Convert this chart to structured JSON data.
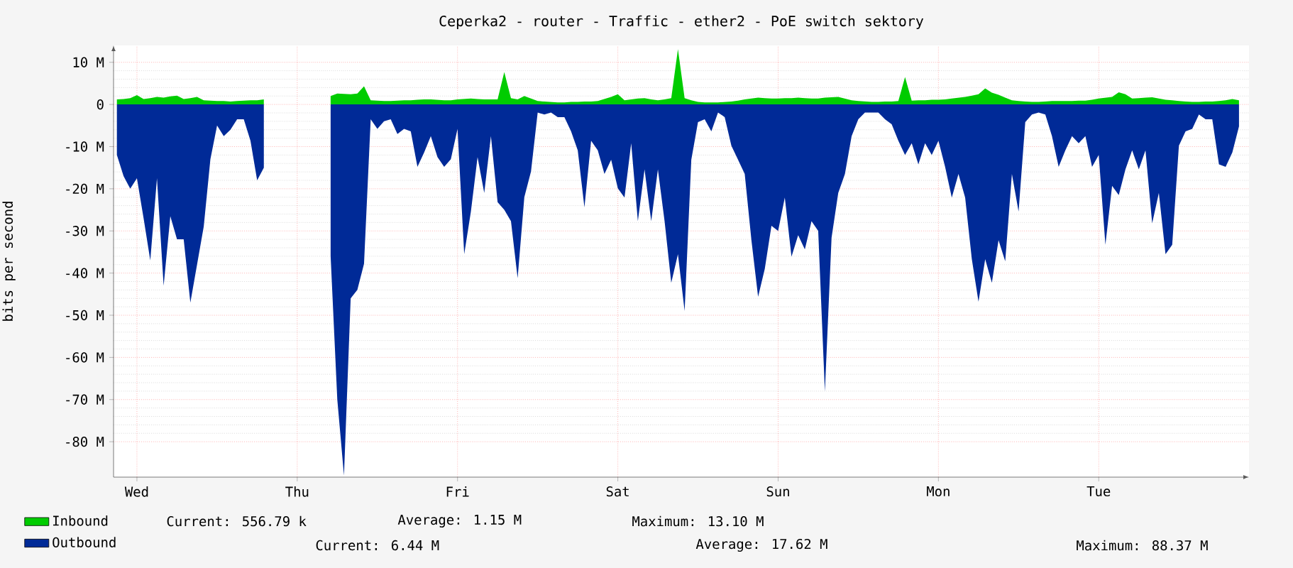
{
  "chart_data": {
    "type": "area",
    "title": "Ceperka2 - router - Traffic - ether2 - PoE switch sektory",
    "ylabel": "bits per second",
    "categories": [
      null,
      null,
      null,
      "Wed",
      null,
      null,
      null,
      null,
      null,
      null,
      null,
      null,
      null,
      null,
      null,
      null,
      null,
      null,
      null,
      null,
      null,
      null,
      null,
      null,
      null,
      null,
      null,
      "Thu",
      null,
      null,
      null,
      null,
      null,
      null,
      null,
      null,
      null,
      null,
      null,
      null,
      null,
      null,
      null,
      null,
      null,
      null,
      null,
      null,
      null,
      null,
      null,
      "Fri",
      null,
      null,
      null,
      null,
      null,
      null,
      null,
      null,
      null,
      null,
      null,
      null,
      null,
      null,
      null,
      null,
      null,
      null,
      null,
      null,
      null,
      null,
      null,
      "Sat",
      null,
      null,
      null,
      null,
      null,
      null,
      null,
      null,
      null,
      null,
      null,
      null,
      null,
      null,
      null,
      null,
      null,
      null,
      null,
      null,
      null,
      null,
      null,
      "Sun",
      null,
      null,
      null,
      null,
      null,
      null,
      null,
      null,
      null,
      null,
      null,
      null,
      null,
      null,
      null,
      null,
      null,
      null,
      null,
      null,
      null,
      null,
      null,
      "Mon",
      null,
      null,
      null,
      null,
      null,
      null,
      null,
      null,
      null,
      null,
      null,
      null,
      null,
      null,
      null,
      null,
      null,
      null,
      null,
      null,
      null,
      null,
      null,
      "Tue",
      null,
      null,
      null,
      null,
      null,
      null,
      null,
      null,
      null,
      null,
      null,
      null,
      null,
      null,
      null,
      null,
      null,
      null,
      null,
      null,
      null
    ],
    "ylim": [
      -88.4,
      14
    ],
    "yticks": [
      {
        "value": 10,
        "label": "10 M"
      },
      0,
      {
        "value": -10,
        "label": "-10 M"
      },
      {
        "value": -20,
        "label": "-20 M"
      },
      {
        "value": -30,
        "label": "-30 M"
      },
      {
        "value": -40,
        "label": "-40 M"
      },
      {
        "value": -50,
        "label": "-50 M"
      },
      {
        "value": -60,
        "label": "-60 M"
      },
      {
        "value": -70,
        "label": "-70 M"
      },
      {
        "value": -80,
        "label": "-80 M"
      }
    ],
    "grid": true,
    "legend": "bottom",
    "series": [
      {
        "name": "Inbound",
        "color": "#00cc00",
        "values": [
          1.2,
          1.3,
          1.5,
          2.2,
          1.3,
          1.5,
          1.8,
          1.6,
          1.9,
          2.1,
          1.3,
          1.5,
          1.8,
          1.0,
          0.9,
          0.8,
          0.8,
          0.7,
          0.8,
          0.9,
          1.0,
          1.0,
          1.2,
          null,
          null,
          null,
          null,
          null,
          null,
          null,
          null,
          null,
          2.0,
          2.6,
          2.5,
          2.4,
          2.6,
          4.3,
          1.0,
          0.9,
          0.8,
          0.8,
          0.9,
          1.0,
          1.0,
          1.1,
          1.2,
          1.2,
          1.1,
          1.0,
          1.0,
          1.2,
          1.3,
          1.4,
          1.3,
          1.2,
          1.2,
          1.2,
          7.7,
          1.5,
          1.2,
          2.0,
          1.4,
          0.8,
          0.7,
          0.6,
          0.5,
          0.5,
          0.6,
          0.6,
          0.7,
          0.7,
          0.8,
          1.3,
          1.8,
          2.4,
          1.0,
          1.2,
          1.4,
          1.5,
          1.2,
          1.0,
          1.2,
          1.5,
          13.1,
          1.5,
          1.0,
          0.6,
          0.5,
          0.5,
          0.5,
          0.6,
          0.7,
          0.9,
          1.2,
          1.4,
          1.6,
          1.5,
          1.4,
          1.4,
          1.5,
          1.5,
          1.6,
          1.5,
          1.4,
          1.4,
          1.6,
          1.7,
          1.8,
          1.4,
          1.0,
          0.8,
          0.7,
          0.6,
          0.6,
          0.7,
          0.7,
          0.8,
          6.5,
          0.9,
          1.0,
          1.0,
          1.1,
          1.1,
          1.2,
          1.4,
          1.6,
          1.8,
          2.1,
          2.4,
          3.8,
          2.8,
          2.3,
          1.6,
          1.0,
          0.8,
          0.7,
          0.6,
          0.6,
          0.7,
          0.8,
          0.8,
          0.8,
          0.8,
          0.9,
          0.9,
          1.1,
          1.4,
          1.6,
          1.8,
          2.9,
          2.4,
          1.4,
          1.5,
          1.6,
          1.7,
          1.4,
          1.1,
          1.0,
          0.8,
          0.7,
          0.6,
          0.6,
          0.7,
          0.7,
          0.8,
          1.0,
          1.3,
          1.0
        ]
      },
      {
        "name": "Outbound",
        "color": "#002a97",
        "values": [
          -12,
          -17,
          -20,
          -17.5,
          -27,
          -37,
          -17.5,
          -43,
          -26.5,
          -32,
          -32,
          -47,
          -38,
          -29,
          -13,
          -5,
          -7.5,
          -6,
          -3.5,
          -3.5,
          -8.6,
          -18,
          -15,
          null,
          null,
          null,
          null,
          null,
          null,
          null,
          null,
          null,
          -36,
          -70,
          -88,
          -46,
          -44,
          -37.8,
          -3.5,
          -5.8,
          -4,
          -3.5,
          -7,
          -5.8,
          -6.4,
          -14.8,
          -11.4,
          -7.5,
          -12.5,
          -14.8,
          -13,
          -5.8,
          -35.5,
          -25.4,
          -12.5,
          -21,
          -7.5,
          -23.2,
          -25,
          -27.7,
          -41.2,
          -22,
          -15.9,
          -1.9,
          -2.4,
          -1.9,
          -3,
          -3,
          -6.4,
          -10.9,
          -24.4,
          -8.6,
          -10.9,
          -16.5,
          -13.1,
          -19.9,
          -22.1,
          -9.2,
          -27.7,
          -15.4,
          -27.7,
          -15.4,
          -27.7,
          -42.3,
          -35.5,
          -49,
          -13.1,
          -4.2,
          -3.5,
          -6.4,
          -1.9,
          -3,
          -9.8,
          -13.1,
          -16.5,
          -32.2,
          -45.6,
          -39,
          -28.8,
          -30,
          -22.1,
          -36.1,
          -31,
          -34.4,
          -27.7,
          -30,
          -68.1,
          -31.6,
          -21,
          -16.5,
          -7.5,
          -3.5,
          -1.9,
          -1.9,
          -1.9,
          -3.5,
          -4.7,
          -8.6,
          -12,
          -9.2,
          -14.2,
          -9.2,
          -12,
          -8.6,
          -14.8,
          -22.1,
          -16.5,
          -22.1,
          -36.7,
          -46.8,
          -36.7,
          -42.3,
          -32.2,
          -37.2,
          -16.5,
          -25.4,
          -4.2,
          -2.4,
          -1.9,
          -2.4,
          -7.5,
          -14.8,
          -10.9,
          -7.5,
          -9.2,
          -7.5,
          -14.8,
          -12,
          -33.3,
          -19.3,
          -21.5,
          -15.4,
          -10.9,
          -15.4,
          -10.9,
          -28.2,
          -21,
          -35.5,
          -33.3,
          -9.8,
          -6.4,
          -5.8,
          -2.4,
          -3.5,
          -3.5,
          -14.2,
          -14.8,
          -11.4,
          -5.2
        ]
      }
    ],
    "annotations": [
      "Current:  556.79 k",
      "Average:    1.15 M",
      "Maximum:   13.10 M",
      "Current:    6.44 M",
      "Average:   17.62 M",
      "Maximum:   88.37 M"
    ]
  }
}
